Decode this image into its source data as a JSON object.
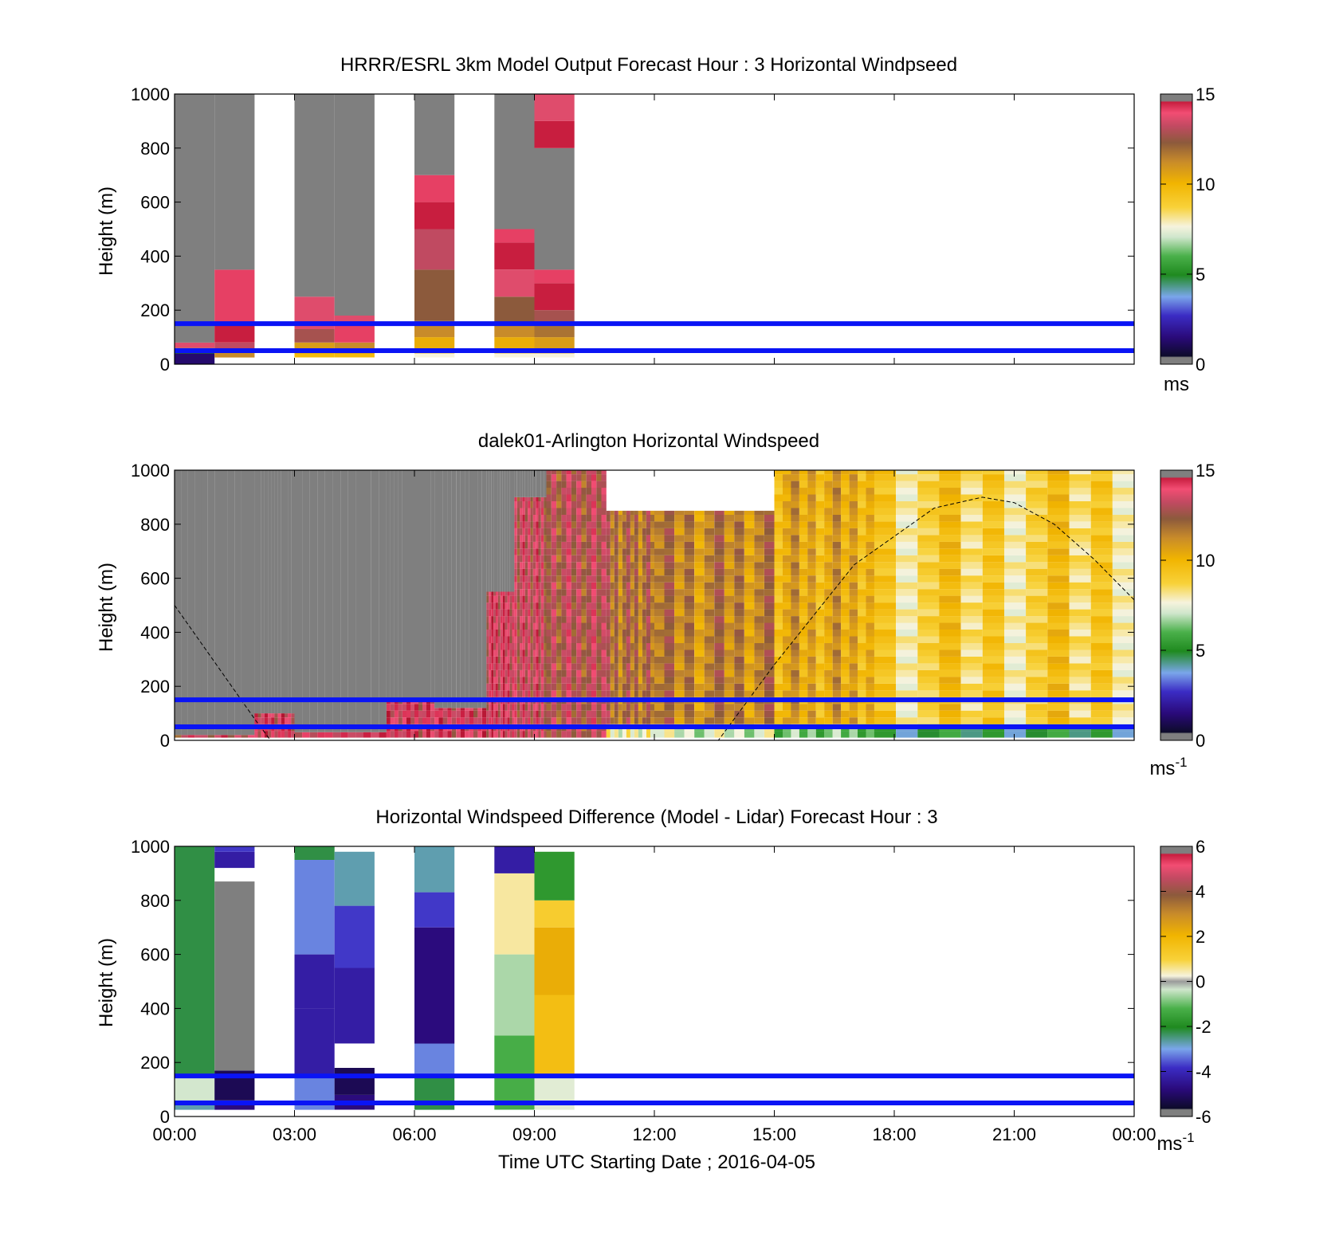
{
  "figure": {
    "xlabel": "Time UTC  Starting Date ; 2016-04-05",
    "time_ticks": [
      "00:00",
      "03:00",
      "06:00",
      "09:00",
      "12:00",
      "15:00",
      "18:00",
      "21:00",
      "00:00"
    ]
  },
  "chart_data": [
    {
      "type": "heatmap",
      "title": "HRRR/ESRL 3km Model Output   Forecast Hour : 3 Horizontal Windpseed",
      "ylabel": "Height (m)",
      "ylim": [
        0,
        1000
      ],
      "yticks": [
        "0",
        "200",
        "400",
        "600",
        "800",
        "1000"
      ],
      "xlim_hours": [
        0,
        24
      ],
      "reference_lines_m": [
        50,
        150
      ],
      "reference_line_color": "#0a14f5",
      "colorbar": {
        "min": 0,
        "max": 15,
        "ticks": [
          "0",
          "5",
          "10",
          "15"
        ],
        "unit": "ms"
      },
      "columns": [
        {
          "t0": 0.0,
          "t1": 1.0,
          "segments": [
            [
              0,
              25,
              1
            ],
            [
              25,
              40,
              1
            ],
            [
              40,
              60,
              4.5
            ],
            [
              60,
              80,
              13.5
            ],
            [
              80,
              1000,
              "nan"
            ]
          ]
        },
        {
          "t0": 1.0,
          "t1": 2.0,
          "segments": [
            [
              25,
              50,
              11
            ],
            [
              50,
              80,
              13
            ],
            [
              80,
              150,
              14.5
            ],
            [
              150,
              350,
              14
            ],
            [
              350,
              1000,
              "nan"
            ]
          ]
        },
        {
          "t0": 3.0,
          "t1": 4.0,
          "segments": [
            [
              25,
              40,
              9.5
            ],
            [
              40,
              80,
              10.5
            ],
            [
              80,
              130,
              12.5
            ],
            [
              130,
              250,
              13.5
            ],
            [
              250,
              1000,
              "nan"
            ]
          ]
        },
        {
          "t0": 4.0,
          "t1": 5.0,
          "segments": [
            [
              25,
              40,
              9.5
            ],
            [
              40,
              80,
              11
            ],
            [
              80,
              150,
              14
            ],
            [
              150,
              180,
              13.5
            ],
            [
              180,
              1000,
              "nan"
            ]
          ]
        },
        {
          "t0": 6.0,
          "t1": 7.0,
          "segments": [
            [
              25,
              40,
              7.5
            ],
            [
              40,
              100,
              10
            ],
            [
              100,
              160,
              11
            ],
            [
              160,
              350,
              12
            ],
            [
              350,
              500,
              13
            ],
            [
              500,
              600,
              14.5
            ],
            [
              600,
              700,
              14
            ],
            [
              700,
              1000,
              "nan"
            ]
          ]
        },
        {
          "t0": 8.0,
          "t1": 9.0,
          "segments": [
            [
              25,
              40,
              7.5
            ],
            [
              40,
              100,
              10
            ],
            [
              100,
              150,
              11
            ],
            [
              150,
              250,
              12
            ],
            [
              250,
              350,
              13.5
            ],
            [
              350,
              450,
              14.5
            ],
            [
              450,
              500,
              14
            ],
            [
              500,
              1000,
              "nan"
            ]
          ]
        },
        {
          "t0": 9.0,
          "t1": 10.0,
          "segments": [
            [
              25,
              40,
              7.5
            ],
            [
              40,
              100,
              10.5
            ],
            [
              100,
              150,
              11.5
            ],
            [
              150,
              200,
              12.5
            ],
            [
              200,
              300,
              14.5
            ],
            [
              300,
              350,
              14
            ],
            [
              350,
              800,
              "nan"
            ],
            [
              800,
              900,
              14.5
            ],
            [
              900,
              1000,
              13.5
            ]
          ]
        }
      ]
    },
    {
      "type": "heatmap",
      "title": "dalek01-Arlington  Horizontal Windspeed",
      "ylabel": "Height (m)",
      "ylim": [
        0,
        1000
      ],
      "yticks": [
        "0",
        "200",
        "400",
        "600",
        "800",
        "1000"
      ],
      "xlim_hours": [
        0,
        24
      ],
      "reference_lines_m": [
        50,
        150
      ],
      "reference_line_color": "#0a14f5",
      "colorbar": {
        "min": 0,
        "max": 15,
        "ticks": [
          "0",
          "5",
          "10",
          "15"
        ],
        "unit": "ms",
        "unit_exp": "-1"
      },
      "profiles": [
        {
          "t0": 0.0,
          "t1": 2.0,
          "bottom": 10,
          "top_m": 20,
          "speed": 13,
          "fill_above": "nan"
        },
        {
          "t0": 2.0,
          "t1": 3.0,
          "bottom": 10,
          "top_m": 100,
          "speed": 13.5,
          "fill_above": "nan"
        },
        {
          "t0": 3.0,
          "t1": 5.3,
          "bottom": 10,
          "top_m": 30,
          "speed": 13.5,
          "fill_above": "nan"
        },
        {
          "t0": 5.3,
          "t1": 6.5,
          "bottom": 10,
          "top_m": 150,
          "speed": 13.5,
          "fill_above": "nan"
        },
        {
          "t0": 6.5,
          "t1": 7.8,
          "bottom": 10,
          "top_m": 120,
          "speed": 13.5,
          "fill_above": "nan"
        },
        {
          "t0": 7.8,
          "t1": 8.5,
          "bottom": 10,
          "top_m": 550,
          "speed": 13.5,
          "fill_above": "nan"
        },
        {
          "t0": 8.5,
          "t1": 9.3,
          "bottom": 10,
          "top_m": 900,
          "speed": 13,
          "fill_above": "nan"
        },
        {
          "t0": 9.3,
          "t1": 10.8,
          "bottom": 10,
          "top_m": 1000,
          "speed": 12.5,
          "fill_above": "none"
        },
        {
          "t0": 10.8,
          "t1": 12.0,
          "bottom": 10,
          "top_m": 850,
          "speed": 11.5,
          "fill_above": "none"
        },
        {
          "t0": 12.0,
          "t1": 15.0,
          "bottom": 10,
          "top_m": 850,
          "speed": 11,
          "fill_above": "none"
        },
        {
          "t0": 15.0,
          "t1": 17.5,
          "bottom": 10,
          "top_m": 1000,
          "speed": 10,
          "fill_above": "none"
        },
        {
          "t0": 17.5,
          "t1": 24.0,
          "bottom": 10,
          "top_m": 1000,
          "speed": 8.5,
          "fill_above": "none"
        }
      ],
      "sun_elevation_curve": {
        "hours": [
          0,
          1,
          2,
          2.4,
          4,
          8,
          12,
          13.6,
          15,
          17,
          19,
          20.2,
          21,
          22,
          23,
          24
        ],
        "heights_m": [
          500,
          290,
          80,
          0,
          0,
          0,
          0,
          0,
          280,
          650,
          860,
          900,
          880,
          800,
          670,
          520
        ]
      }
    },
    {
      "type": "heatmap",
      "title": "Horizontal Windspeed Difference (Model - Lidar) Forecast Hour : 3",
      "ylabel": "Height (m)",
      "xlabel": "Time UTC  Starting Date ; 2016-04-05",
      "ylim": [
        0,
        1000
      ],
      "yticks": [
        "0",
        "200",
        "400",
        "600",
        "800",
        "1000"
      ],
      "xlim_hours": [
        0,
        24
      ],
      "reference_lines_m": [
        50,
        150
      ],
      "reference_line_color": "#0a14f5",
      "colorbar": {
        "min": -6,
        "max": 6,
        "ticks": [
          "-6",
          "-4",
          "-2",
          "0",
          "2",
          "4",
          "6"
        ],
        "unit": "ms",
        "unit_exp": "-1"
      },
      "columns": [
        {
          "t0": 0.0,
          "t1": 1.0,
          "segments": [
            [
              25,
              60,
              -3
            ],
            [
              60,
              150,
              -0.5
            ],
            [
              150,
              1000,
              -2.5
            ]
          ]
        },
        {
          "t0": 1.0,
          "t1": 2.0,
          "segments": [
            [
              25,
              60,
              -5
            ],
            [
              60,
              170,
              -5.5
            ],
            [
              170,
              870,
              "nan"
            ],
            [
              870,
              920,
              "none"
            ],
            [
              920,
              980,
              -4.5
            ],
            [
              980,
              1000,
              -4
            ]
          ]
        },
        {
          "t0": 3.0,
          "t1": 4.0,
          "segments": [
            [
              25,
              150,
              -3.5
            ],
            [
              150,
              400,
              -4.5
            ],
            [
              400,
              600,
              -4.5
            ],
            [
              600,
              950,
              -3.5
            ],
            [
              950,
              1000,
              -2.5
            ]
          ]
        },
        {
          "t0": 4.0,
          "t1": 5.0,
          "segments": [
            [
              25,
              80,
              -5
            ],
            [
              80,
              180,
              -5.5
            ],
            [
              180,
              270,
              "none"
            ],
            [
              270,
              550,
              -4.5
            ],
            [
              550,
              780,
              -4
            ],
            [
              780,
              980,
              -3
            ]
          ]
        },
        {
          "t0": 6.0,
          "t1": 7.0,
          "segments": [
            [
              25,
              150,
              -2.5
            ],
            [
              150,
              270,
              -3.5
            ],
            [
              270,
              700,
              -5
            ],
            [
              700,
              830,
              -4
            ],
            [
              830,
              1000,
              -3
            ]
          ]
        },
        {
          "t0": 8.0,
          "t1": 9.0,
          "segments": [
            [
              25,
              300,
              -1.5
            ],
            [
              300,
              600,
              -0.8
            ],
            [
              600,
              900,
              0.3
            ],
            [
              900,
              1000,
              -4.5
            ]
          ]
        },
        {
          "t0": 9.0,
          "t1": 10.0,
          "segments": [
            [
              25,
              150,
              -0.3
            ],
            [
              150,
              450,
              1.5
            ],
            [
              450,
              700,
              2
            ],
            [
              700,
              800,
              1
            ],
            [
              800,
              980,
              -2
            ]
          ]
        }
      ]
    }
  ]
}
